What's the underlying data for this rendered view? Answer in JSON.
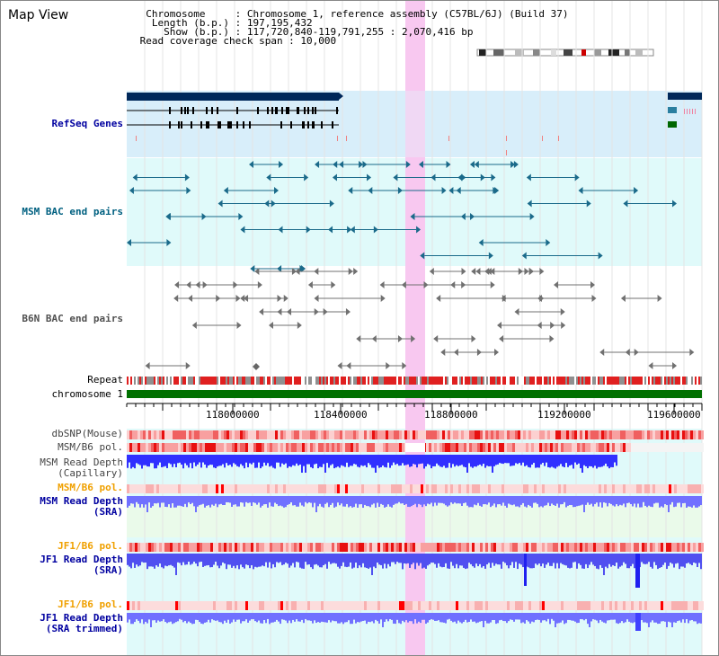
{
  "header": {
    "title": "Map View",
    "chromosome_row": "  Chromosome     : Chromosome 1, reference assembly (C57BL/6J) (Build 37)",
    "length_row": "   Length (b.p.) : 197,195,432",
    "show_row": "     Show (b.p.) : 117,720,840-119,791,255 : 2,070,416 bp",
    "coverage_row": " Read coverage check span : 10,000"
  },
  "colors": {
    "dark_navy": "#00285a",
    "refseq_bg": "#d8eefa",
    "track_bg": "#e0fafa",
    "msm_bac": "#1a6a8a",
    "b6n_bac": "#707070",
    "chromosome": "#007000",
    "highlight": "#f8c8f0",
    "label_navy": "#0000a0",
    "label_msm": "#006080",
    "label_orange": "#f0a000",
    "snp_red": "#ff3030",
    "depth_blue": "#3030ff",
    "depth_sra": "#7070ff"
  },
  "tracks": {
    "refseq": "RefSeq Genes",
    "msm_bac": "MSM BAC end pairs",
    "b6n_bac": "B6N BAC end pairs",
    "repeat": "Repeat",
    "chromosome": "chromosome 1",
    "dbsnp": "dbSNP(Mouse)",
    "msm_b6_pol_1": "MSM/B6 pol.",
    "msm_depth_cap_1": "MSM Read Depth",
    "msm_depth_cap_2": "(Capillary)",
    "msm_b6_pol_2": "MSM/B6 pol.",
    "msm_depth_sra_1": "MSM Read Depth",
    "msm_depth_sra_2": "(SRA)",
    "jf1_b6_pol_1": "JF1/B6 pol.",
    "jf1_depth_sra_1": "JF1 Read Depth",
    "jf1_depth_sra_2": "(SRA)",
    "jf1_b6_pol_2": "JF1/B6 pol.",
    "jf1_depth_trim_1": "JF1 Read Depth",
    "jf1_depth_trim_2": "(SRA trimmed)"
  },
  "axis": {
    "ticks": [
      "118000000",
      "118400000",
      "118800000",
      "119200000",
      "119600000"
    ]
  }
}
